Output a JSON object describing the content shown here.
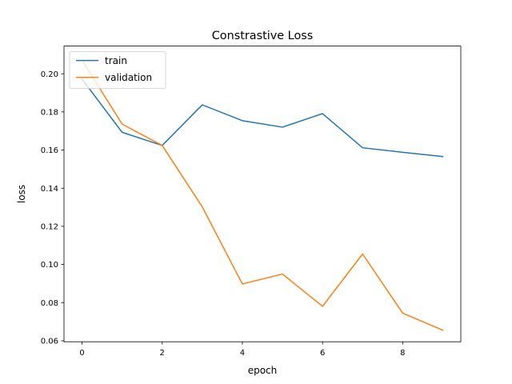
{
  "chart_data": {
    "type": "line",
    "title": "Constrastive Loss",
    "xlabel": "epoch",
    "ylabel": "loss",
    "x": [
      0,
      1,
      2,
      3,
      4,
      5,
      6,
      7,
      8,
      9
    ],
    "xlim": [
      -0.45,
      9.45
    ],
    "ylim": [
      0.0595,
      0.2145
    ],
    "xticks": [
      0,
      2,
      4,
      6,
      8
    ],
    "yticks": [
      0.06,
      0.08,
      0.1,
      0.12,
      0.14,
      0.16,
      0.18,
      0.2
    ],
    "ytick_labels": [
      "0.06",
      "0.08",
      "0.10",
      "0.12",
      "0.14",
      "0.16",
      "0.18",
      "0.20"
    ],
    "grid": false,
    "legend_position": "upper left",
    "series": [
      {
        "name": "train",
        "color": "#1f77b4",
        "values": [
          0.1972,
          0.1693,
          0.1624,
          0.1837,
          0.1754,
          0.172,
          0.1791,
          0.1612,
          0.1588,
          0.1566
        ]
      },
      {
        "name": "validation",
        "color": "#ff7f0e",
        "values": [
          0.2071,
          0.1736,
          0.1624,
          0.1302,
          0.0898,
          0.095,
          0.0781,
          0.1055,
          0.0745,
          0.0656
        ]
      }
    ]
  }
}
